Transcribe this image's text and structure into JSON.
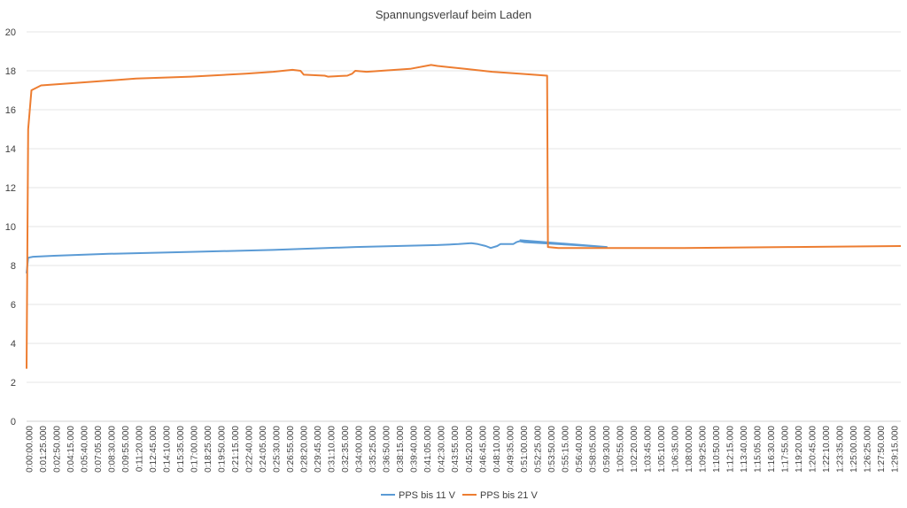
{
  "chart_data": {
    "type": "line",
    "title": "Spannungsverlauf beim Laden",
    "xlabel": "",
    "ylabel": "",
    "ylim": [
      0,
      20
    ],
    "yticks": [
      0,
      2,
      4,
      6,
      8,
      10,
      12,
      14,
      16,
      18,
      20
    ],
    "x_unit": "elapsed time (h:mm:ss)",
    "xlim_seconds": [
      0,
      5425
    ],
    "x_tick_labels": [
      "0:00:00.000",
      "0:01:25.000",
      "0:02:50.000",
      "0:04:15.000",
      "0:05:40.000",
      "0:07:05.000",
      "0:08:30.000",
      "0:09:55.000",
      "0:11:20.000",
      "0:12:45.000",
      "0:14:10.000",
      "0:15:35.000",
      "0:17:00.000",
      "0:18:25.000",
      "0:19:50.000",
      "0:21:15.000",
      "0:22:40.000",
      "0:24:05.000",
      "0:25:30.000",
      "0:26:55.000",
      "0:28:20.000",
      "0:29:45.000",
      "0:31:10.000",
      "0:32:35.000",
      "0:34:00.000",
      "0:35:25.000",
      "0:36:50.000",
      "0:38:15.000",
      "0:39:40.000",
      "0:41:05.000",
      "0:42:30.000",
      "0:43:55.000",
      "0:45:20.000",
      "0:46:45.000",
      "0:48:10.000",
      "0:49:35.000",
      "0:51:00.000",
      "0:52:25.000",
      "0:53:50.000",
      "0:55:15.000",
      "0:56:40.000",
      "0:58:05.000",
      "0:59:30.000",
      "1:00:55.000",
      "1:02:20.000",
      "1:03:45.000",
      "1:05:10.000",
      "1:06:35.000",
      "1:08:00.000",
      "1:09:25.000",
      "1:10:50.000",
      "1:12:15.000",
      "1:13:40.000",
      "1:15:05.000",
      "1:16:30.000",
      "1:17:55.000",
      "1:19:20.000",
      "1:20:45.000",
      "1:22:10.000",
      "1:23:35.000",
      "1:25:00.000",
      "1:26:25.000",
      "1:27:50.000",
      "1:29:15.000"
    ],
    "grid": "horizontal",
    "legend_position": "bottom",
    "series": [
      {
        "name": "PPS bis 11 V",
        "color": "#5b9bd5",
        "points": [
          [
            0,
            7.6
          ],
          [
            10,
            8.4
          ],
          [
            40,
            8.45
          ],
          [
            170,
            8.5
          ],
          [
            510,
            8.6
          ],
          [
            1020,
            8.7
          ],
          [
            1530,
            8.8
          ],
          [
            2040,
            8.95
          ],
          [
            2550,
            9.05
          ],
          [
            2680,
            9.1
          ],
          [
            2760,
            9.15
          ],
          [
            2800,
            9.1
          ],
          [
            2850,
            9.0
          ],
          [
            2880,
            8.9
          ],
          [
            2920,
            9.0
          ],
          [
            2940,
            9.1
          ],
          [
            3020,
            9.1
          ],
          [
            3040,
            9.2
          ],
          [
            3060,
            9.25
          ],
          [
            3090,
            9.2
          ],
          [
            3200,
            9.15
          ],
          [
            3400,
            9.05
          ],
          [
            3600,
            8.95
          ],
          [
            3060,
            9.3
          ]
        ]
      },
      {
        "name": "PPS bis 21 V",
        "color": "#ed7d31",
        "points": [
          [
            0,
            2.7
          ],
          [
            10,
            15.0
          ],
          [
            30,
            17.0
          ],
          [
            90,
            17.25
          ],
          [
            340,
            17.4
          ],
          [
            680,
            17.6
          ],
          [
            1020,
            17.7
          ],
          [
            1360,
            17.85
          ],
          [
            1530,
            17.95
          ],
          [
            1650,
            18.05
          ],
          [
            1700,
            18.0
          ],
          [
            1720,
            17.8
          ],
          [
            1850,
            17.75
          ],
          [
            1870,
            17.7
          ],
          [
            1990,
            17.75
          ],
          [
            2020,
            17.85
          ],
          [
            2040,
            18.0
          ],
          [
            2110,
            17.95
          ],
          [
            2380,
            18.1
          ],
          [
            2510,
            18.3
          ],
          [
            2550,
            18.25
          ],
          [
            2720,
            18.1
          ],
          [
            2890,
            17.95
          ],
          [
            3060,
            17.85
          ],
          [
            3230,
            17.75
          ],
          [
            3235,
            8.95
          ],
          [
            3300,
            8.9
          ],
          [
            4080,
            8.9
          ],
          [
            4760,
            8.95
          ],
          [
            5425,
            9.0
          ]
        ]
      }
    ]
  }
}
